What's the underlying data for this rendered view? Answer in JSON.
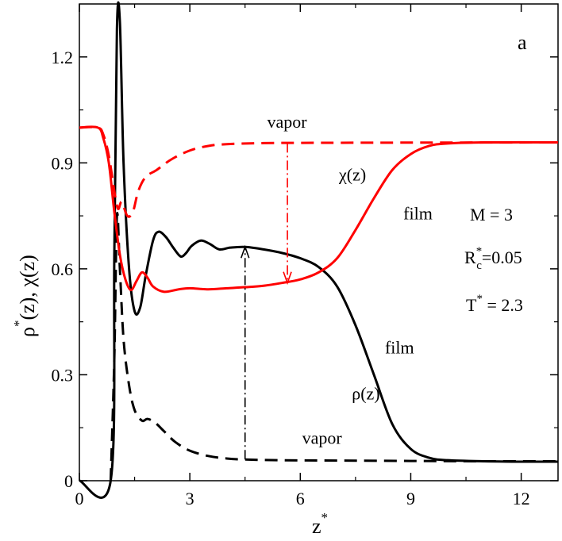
{
  "chart_data": {
    "type": "line",
    "panel_label": "a",
    "xlabel": "z",
    "xlabel_sup": "*",
    "ylabel_parts": [
      {
        "text": "ρ",
        "sup": "*"
      },
      {
        "text": "(z),  χ(z)",
        "sup": ""
      }
    ],
    "xlim": [
      0,
      13
    ],
    "ylim": [
      0,
      1.35
    ],
    "xticks": [
      {
        "value": 0,
        "label": "0"
      },
      {
        "value": 3,
        "label": "3"
      },
      {
        "value": 6,
        "label": "6"
      },
      {
        "value": 9,
        "label": "9"
      },
      {
        "value": 12,
        "label": "12"
      }
    ],
    "yticks": [
      {
        "value": 0,
        "label": "0"
      },
      {
        "value": 0.3,
        "label": "0.3"
      },
      {
        "value": 0.6,
        "label": "0.6"
      },
      {
        "value": 0.9,
        "label": "0.9"
      },
      {
        "value": 1.2,
        "label": "1.2"
      }
    ],
    "colors": {
      "black": "#000000",
      "red": "#ff0000"
    },
    "series": [
      {
        "name": "rho-film",
        "color": "#000000",
        "style": "solid",
        "points": [
          [
            0,
            0
          ],
          [
            0.85,
            0
          ],
          [
            0.95,
            0.65
          ],
          [
            1.02,
            1.28
          ],
          [
            1.1,
            1.3
          ],
          [
            1.2,
            0.9
          ],
          [
            1.35,
            0.6
          ],
          [
            1.5,
            0.48
          ],
          [
            1.65,
            0.49
          ],
          [
            1.8,
            0.58
          ],
          [
            2.0,
            0.68
          ],
          [
            2.15,
            0.705
          ],
          [
            2.35,
            0.69
          ],
          [
            2.55,
            0.66
          ],
          [
            2.75,
            0.635
          ],
          [
            2.9,
            0.645
          ],
          [
            3.05,
            0.665
          ],
          [
            3.3,
            0.68
          ],
          [
            3.55,
            0.67
          ],
          [
            3.8,
            0.655
          ],
          [
            4.1,
            0.66
          ],
          [
            4.5,
            0.662
          ],
          [
            5.0,
            0.655
          ],
          [
            5.5,
            0.645
          ],
          [
            6.0,
            0.63
          ],
          [
            6.5,
            0.605
          ],
          [
            7.0,
            0.55
          ],
          [
            7.5,
            0.44
          ],
          [
            8.0,
            0.3
          ],
          [
            8.5,
            0.16
          ],
          [
            9.0,
            0.09
          ],
          [
            9.5,
            0.065
          ],
          [
            10.0,
            0.058
          ],
          [
            11.0,
            0.055
          ],
          [
            12.0,
            0.054
          ],
          [
            13.0,
            0.054
          ]
        ]
      },
      {
        "name": "rho-vapor",
        "color": "#000000",
        "style": "dashed",
        "points": [
          [
            0.85,
            0
          ],
          [
            0.95,
            0.35
          ],
          [
            1.02,
            0.75
          ],
          [
            1.1,
            0.6
          ],
          [
            1.2,
            0.4
          ],
          [
            1.35,
            0.27
          ],
          [
            1.5,
            0.2
          ],
          [
            1.7,
            0.17
          ],
          [
            1.85,
            0.175
          ],
          [
            2.05,
            0.165
          ],
          [
            2.3,
            0.14
          ],
          [
            2.6,
            0.11
          ],
          [
            3.0,
            0.085
          ],
          [
            3.5,
            0.07
          ],
          [
            4.0,
            0.063
          ],
          [
            4.5,
            0.06
          ],
          [
            5.5,
            0.058
          ],
          [
            7.0,
            0.057
          ],
          [
            9.0,
            0.056
          ],
          [
            11.0,
            0.055
          ],
          [
            13.0,
            0.055
          ]
        ]
      },
      {
        "name": "chi-film",
        "color": "#ff0000",
        "style": "solid",
        "points": [
          [
            0,
            1.0
          ],
          [
            0.5,
            1.0
          ],
          [
            0.65,
            0.97
          ],
          [
            0.8,
            0.9
          ],
          [
            0.95,
            0.76
          ],
          [
            1.1,
            0.64
          ],
          [
            1.25,
            0.57
          ],
          [
            1.4,
            0.54
          ],
          [
            1.55,
            0.565
          ],
          [
            1.7,
            0.59
          ],
          [
            1.85,
            0.575
          ],
          [
            2.0,
            0.55
          ],
          [
            2.3,
            0.535
          ],
          [
            2.7,
            0.542
          ],
          [
            3.0,
            0.545
          ],
          [
            3.5,
            0.542
          ],
          [
            4.0,
            0.545
          ],
          [
            4.5,
            0.548
          ],
          [
            5.0,
            0.552
          ],
          [
            5.5,
            0.56
          ],
          [
            6.0,
            0.57
          ],
          [
            6.5,
            0.59
          ],
          [
            7.0,
            0.63
          ],
          [
            7.5,
            0.71
          ],
          [
            8.0,
            0.8
          ],
          [
            8.5,
            0.88
          ],
          [
            9.0,
            0.925
          ],
          [
            9.5,
            0.948
          ],
          [
            10.0,
            0.955
          ],
          [
            11.0,
            0.958
          ],
          [
            13.0,
            0.958
          ]
        ]
      },
      {
        "name": "chi-vapor",
        "color": "#ff0000",
        "style": "dashed",
        "points": [
          [
            0,
            1.0
          ],
          [
            0.5,
            1.0
          ],
          [
            0.65,
            0.98
          ],
          [
            0.8,
            0.92
          ],
          [
            0.95,
            0.82
          ],
          [
            1.05,
            0.77
          ],
          [
            1.15,
            0.79
          ],
          [
            1.3,
            0.75
          ],
          [
            1.45,
            0.76
          ],
          [
            1.6,
            0.82
          ],
          [
            1.8,
            0.86
          ],
          [
            2.1,
            0.88
          ],
          [
            2.5,
            0.91
          ],
          [
            3.0,
            0.935
          ],
          [
            3.5,
            0.948
          ],
          [
            4.0,
            0.953
          ],
          [
            5.0,
            0.956
          ],
          [
            7.0,
            0.957
          ],
          [
            13.0,
            0.958
          ]
        ]
      }
    ],
    "transition_arrows": [
      {
        "name": "black-arrow",
        "color": "#000000",
        "x": 4.5,
        "y_from": 0.06,
        "y_to": 0.662
      },
      {
        "name": "red-arrow",
        "color": "#ff0000",
        "x": 5.65,
        "y_from": 0.956,
        "y_to": 0.56
      }
    ],
    "annotations": [
      {
        "name": "vapor-label-red",
        "text": "vapor",
        "x": 5.1,
        "y": 1.0
      },
      {
        "name": "chi-label",
        "text": "χ(z)",
        "x": 7.05,
        "y": 0.85
      },
      {
        "name": "film-label-red",
        "text": "film",
        "x": 8.8,
        "y": 0.74
      },
      {
        "name": "film-label-black",
        "text": "film",
        "x": 8.3,
        "y": 0.36
      },
      {
        "name": "rho-label",
        "text": "ρ(z)",
        "x": 7.4,
        "y": 0.23
      },
      {
        "name": "vapor-label-black",
        "text": "vapor",
        "x": 6.05,
        "y": 0.105
      }
    ],
    "params": {
      "m_label": "M = 3",
      "rc_main": "R",
      "rc_sup": "*",
      "rc_sub": "c",
      "rc_value": "=0.05",
      "t_main": "T",
      "t_sup": "*",
      "t_value": " = 2.3"
    }
  }
}
